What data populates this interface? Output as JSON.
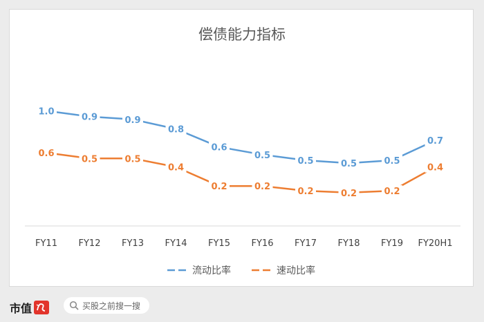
{
  "chart_data": {
    "type": "line",
    "title": "偿债能力指标",
    "categories": [
      "FY11",
      "FY12",
      "FY13",
      "FY14",
      "FY15",
      "FY16",
      "FY17",
      "FY18",
      "FY19",
      "FY20H1"
    ],
    "series": [
      {
        "name": "流动比率",
        "color": "#5b9bd5",
        "values": [
          1.01,
          0.95,
          0.92,
          0.82,
          0.63,
          0.55,
          0.49,
          0.46,
          0.49,
          0.7
        ],
        "labels": [
          "1.0",
          "0.9",
          "0.9",
          "0.8",
          "0.6",
          "0.5",
          "0.5",
          "0.5",
          "0.5",
          "0.7"
        ]
      },
      {
        "name": "速动比率",
        "color": "#ed7d31",
        "values": [
          0.57,
          0.51,
          0.51,
          0.42,
          0.22,
          0.22,
          0.17,
          0.15,
          0.17,
          0.42
        ],
        "labels": [
          "0.6",
          "0.5",
          "0.5",
          "0.4",
          "0.2",
          "0.2",
          "0.2",
          "0.2",
          "0.2",
          "0.4"
        ]
      }
    ],
    "ylim": [
      -0.2,
      1.3
    ],
    "xlabel": "",
    "ylabel": "",
    "grid": false,
    "legend": "bottom"
  },
  "footer": {
    "brand": "市值",
    "search_placeholder": "买股之前搜一搜"
  }
}
